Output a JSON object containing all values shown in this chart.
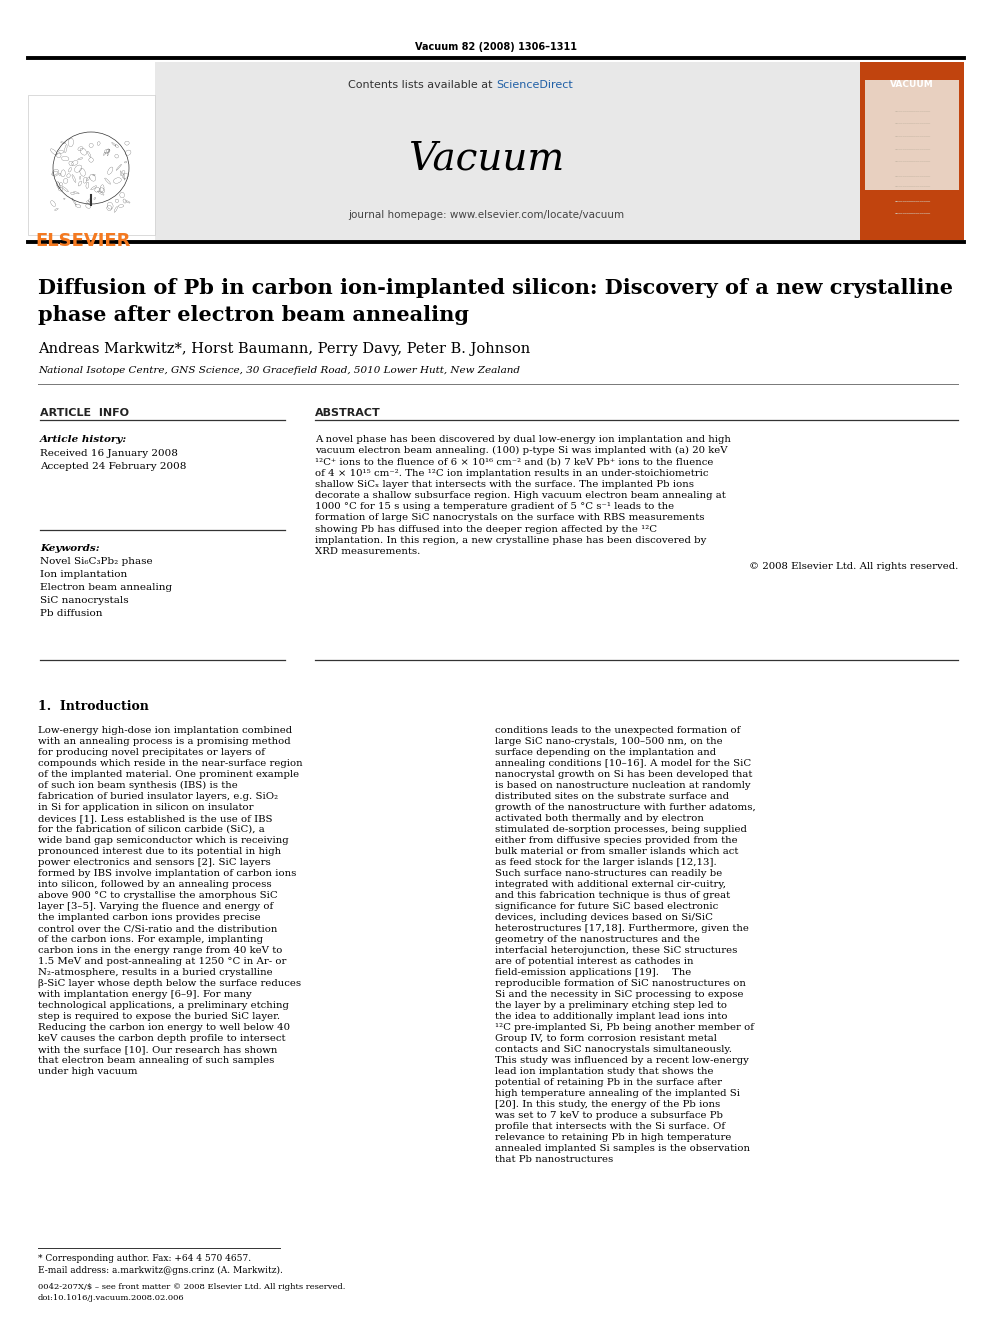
{
  "journal_ref": "Vacuum 82 (2008) 1306–1311",
  "contents_text": "Contents lists available at ",
  "sciencedirect_text": "ScienceDirect",
  "journal_name": "Vacuum",
  "journal_homepage": "journal homepage: www.elsevier.com/locate/vacuum",
  "title_line1": "Diffusion of Pb in carbon ion-implanted silicon: Discovery of a new crystalline",
  "title_line2": "phase after electron beam annealing",
  "authors": "Andreas Markwitz*, Horst Baumann, Perry Davy, Peter B. Johnson",
  "affiliation": "National Isotope Centre, GNS Science, 30 Gracefield Road, 5010 Lower Hutt, New Zealand",
  "article_info_title": "ARTICLE  INFO",
  "abstract_title": "ABSTRACT",
  "article_history_label": "Article history:",
  "received": "Received 16 January 2008",
  "accepted": "Accepted 24 February 2008",
  "keywords_label": "Keywords:",
  "keywords": [
    "Novel Si₆C₃Pb₂ phase",
    "Ion implantation",
    "Electron beam annealing",
    "SiC nanocrystals",
    "Pb diffusion"
  ],
  "abstract_text": "A novel phase has been discovered by dual low-energy ion implantation and high vacuum electron beam annealing. (100) p-type Si was implanted with (a) 20 keV ¹²C⁺ ions to the fluence of 6 × 10¹⁶ cm⁻² and (b) 7 keV Pb⁺ ions to the fluence of 4 × 10¹⁵ cm⁻². The ¹²C ion implantation results in an under-stoichiometric shallow SiCₓ layer that intersects with the surface. The implanted Pb ions decorate a shallow subsurface region. High vacuum electron beam annealing at 1000 °C for 15 s using a temperature gradient of 5 °C s⁻¹ leads to the formation of large SiC nanocrystals on the surface with RBS measurements showing Pb has diffused into the deeper region affected by the ¹²C implantation. In this region, a new crystalline phase has been discovered by XRD measurements.",
  "copyright": "© 2008 Elsevier Ltd. All rights reserved.",
  "section1_title": "1.  Introduction",
  "intro_col1": "   Low-energy high-dose ion implantation combined with an annealing process is a promising method for producing novel precipitates or layers of compounds which reside in the near-surface region of the implanted material. One prominent example of such ion beam synthesis (IBS) is the fabrication of buried insulator layers, e.g. SiO₂ in Si for application in silicon on insulator devices [1]. Less established is the use of IBS for the fabrication of silicon carbide (SiC), a wide band gap semiconductor which is receiving pronounced interest due to its potential in high power electronics and sensors [2]. SiC layers formed by IBS involve implantation of carbon ions into silicon, followed by an annealing process above 900 °C to crystallise the amorphous SiC layer [3–5]. Varying the fluence and energy of the implanted carbon ions provides precise control over the C/Si-ratio and the distribution of the carbon ions. For example, implanting carbon ions in the energy range from 40 keV to 1.5 MeV and post-annealing at 1250 °C in Ar- or N₂-atmosphere, results in a buried crystalline β-SiC layer whose depth below the surface reduces with implantation energy [6–9]. For many technological applications, a preliminary etching step is required to expose the buried SiC layer. Reducing the carbon ion energy to well below 40 keV causes the carbon depth profile to intersect with the surface [10]. Our research has shown that electron beam annealing of such samples under high vacuum",
  "intro_col2": "conditions leads to the unexpected formation of large SiC nano-crystals, 100–500 nm, on the surface depending on the implantation and annealing conditions [10–16]. A model for the SiC nanocrystal growth on Si has been developed that is based on nanostructure nucleation at randomly distributed sites on the substrate surface and growth of the nanostructure with further adatoms, activated both thermally and by electron stimulated de-sorption processes, being supplied either from diffusive species provided from the bulk material or from smaller islands which act as feed stock for the larger islands [12,13]. Such surface nano-structures can readily be integrated with additional external cir-cuitry, and this fabrication technique is thus of great significance for future SiC based electronic devices, including devices based on Si/SiC heterostructures [17,18]. Furthermore, given the geometry of the nanostructures and the interfacial heterojunction, these SiC structures are of potential interest as cathodes in field-emission applications [19].\n   The reproducible formation of SiC nanostructures on Si and the necessity in SiC processing to expose the layer by a preliminary etching step led to the idea to additionally implant lead ions into ¹²C pre-implanted Si, Pb being another member of Group IV, to form corrosion resistant metal contacts and SiC nanocrystals simultaneously. This study was influenced by a recent low-energy lead ion implantation study that shows the potential of retaining Pb in the surface after high temperature annealing of the implanted Si [20]. In this study, the energy of the Pb ions was set to 7 keV to produce a subsurface Pb profile that intersects with the Si surface. Of relevance to retaining Pb in high temperature annealed implanted Si samples is the observation that Pb nanostructures",
  "footnote_star": "* Corresponding author. Fax: +64 4 570 4657.",
  "footnote_email": "E-mail address: a.markwitz@gns.crinz (A. Markwitz).",
  "footer_issn": "0042-207X/$ – see front matter © 2008 Elsevier Ltd. All rights reserved.",
  "footer_doi": "doi:10.1016/j.vacuum.2008.02.006",
  "header_bg": "#e8e8e8",
  "elsevier_color": "#f47920",
  "sciencedirect_color": "#1f5fa6",
  "vacuum_cover_bg": "#c1440e",
  "black": "#000000",
  "white": "#ffffff"
}
